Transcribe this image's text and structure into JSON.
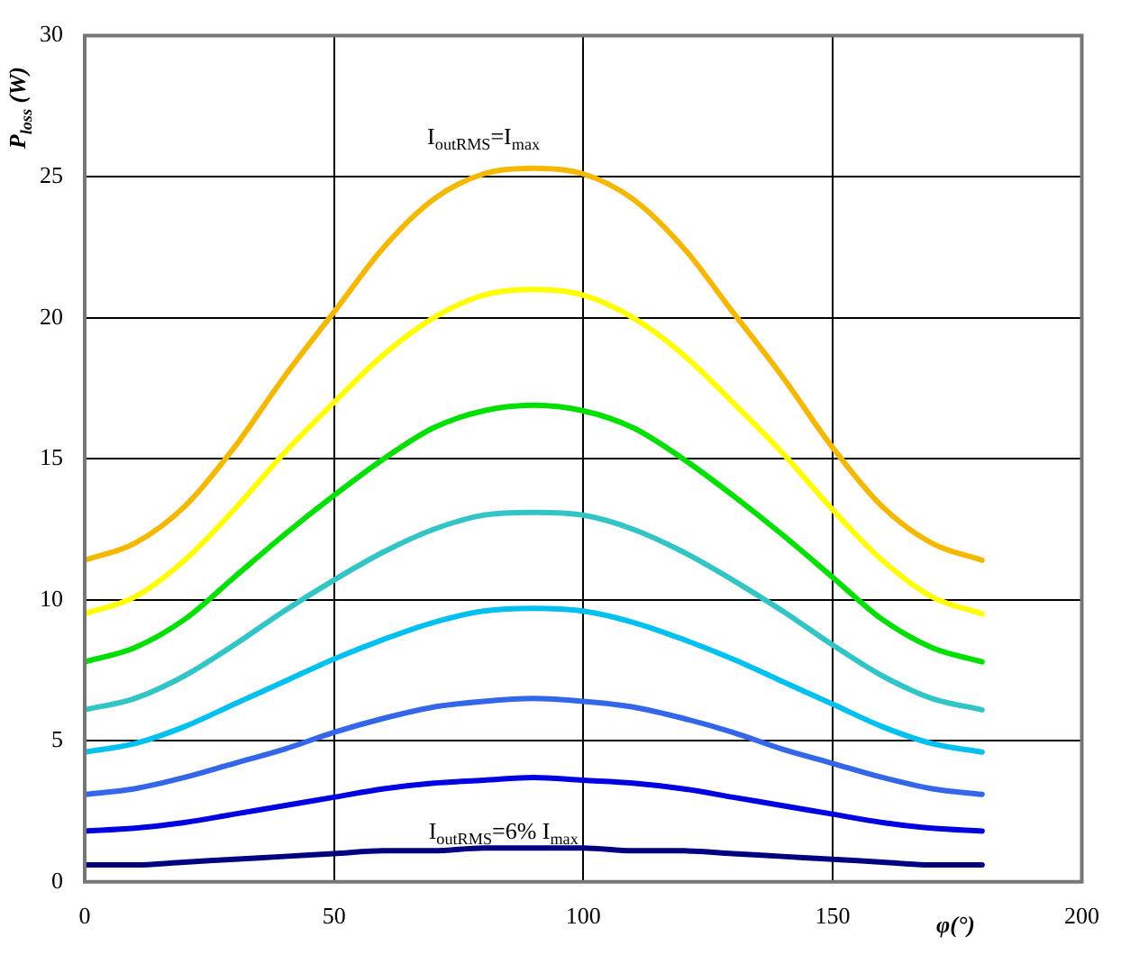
{
  "chart_data": {
    "type": "line",
    "xlabel": "φ(°)",
    "ylabel": "P$_{loss}$ (W)",
    "x": [
      0,
      10,
      20,
      30,
      40,
      50,
      60,
      70,
      80,
      90,
      100,
      110,
      120,
      130,
      140,
      150,
      160,
      170,
      180
    ],
    "series": [
      {
        "color": "#f5b800",
        "values": [
          11.4,
          12.0,
          13.3,
          15.4,
          17.9,
          20.2,
          22.5,
          24.2,
          25.1,
          25.3,
          25.1,
          24.2,
          22.5,
          20.2,
          17.9,
          15.4,
          13.3,
          12.0,
          11.4
        ]
      },
      {
        "color": "#ffff00",
        "values": [
          9.5,
          10.1,
          11.4,
          13.2,
          15.2,
          17.0,
          18.7,
          20.0,
          20.8,
          21.0,
          20.8,
          20.0,
          18.7,
          17.0,
          15.2,
          13.2,
          11.4,
          10.1,
          9.5
        ]
      },
      {
        "color": "#00e000",
        "values": [
          7.8,
          8.3,
          9.3,
          10.8,
          12.3,
          13.7,
          15.0,
          16.1,
          16.7,
          16.9,
          16.7,
          16.1,
          15.0,
          13.7,
          12.3,
          10.8,
          9.3,
          8.3,
          7.8
        ]
      },
      {
        "color": "#33c5c5",
        "values": [
          6.1,
          6.5,
          7.3,
          8.4,
          9.6,
          10.7,
          11.7,
          12.5,
          13.0,
          13.1,
          13.0,
          12.5,
          11.7,
          10.7,
          9.6,
          8.4,
          7.3,
          6.5,
          6.1
        ]
      },
      {
        "color": "#00c0f0",
        "values": [
          4.6,
          4.9,
          5.5,
          6.3,
          7.1,
          7.9,
          8.6,
          9.2,
          9.6,
          9.7,
          9.6,
          9.2,
          8.6,
          7.9,
          7.1,
          6.3,
          5.5,
          4.9,
          4.6
        ]
      },
      {
        "color": "#3366e8",
        "values": [
          3.1,
          3.3,
          3.7,
          4.2,
          4.7,
          5.3,
          5.8,
          6.2,
          6.4,
          6.5,
          6.4,
          6.2,
          5.8,
          5.3,
          4.7,
          4.2,
          3.7,
          3.3,
          3.1
        ]
      },
      {
        "color": "#0000e0",
        "values": [
          1.8,
          1.9,
          2.1,
          2.4,
          2.7,
          3.0,
          3.3,
          3.5,
          3.6,
          3.7,
          3.6,
          3.5,
          3.3,
          3.0,
          2.7,
          2.4,
          2.1,
          1.9,
          1.8
        ]
      },
      {
        "color": "#000080",
        "values": [
          0.6,
          0.6,
          0.7,
          0.8,
          0.9,
          1.0,
          1.1,
          1.1,
          1.2,
          1.2,
          1.2,
          1.1,
          1.1,
          1.0,
          0.9,
          0.8,
          0.7,
          0.6,
          0.6
        ]
      }
    ],
    "annotations": [
      "I$_{outRMS}$=I$_{max}$",
      "I$_{outRMS}$=6% I$_{max}$"
    ],
    "xlim": [
      0,
      200
    ],
    "xticks": [
      0,
      50,
      100,
      150,
      200
    ],
    "ylim": [
      0,
      30
    ],
    "yticks": [
      0,
      5,
      10,
      15,
      20,
      25,
      30
    ],
    "grid": true,
    "marker": "none",
    "line_style": "solid"
  }
}
